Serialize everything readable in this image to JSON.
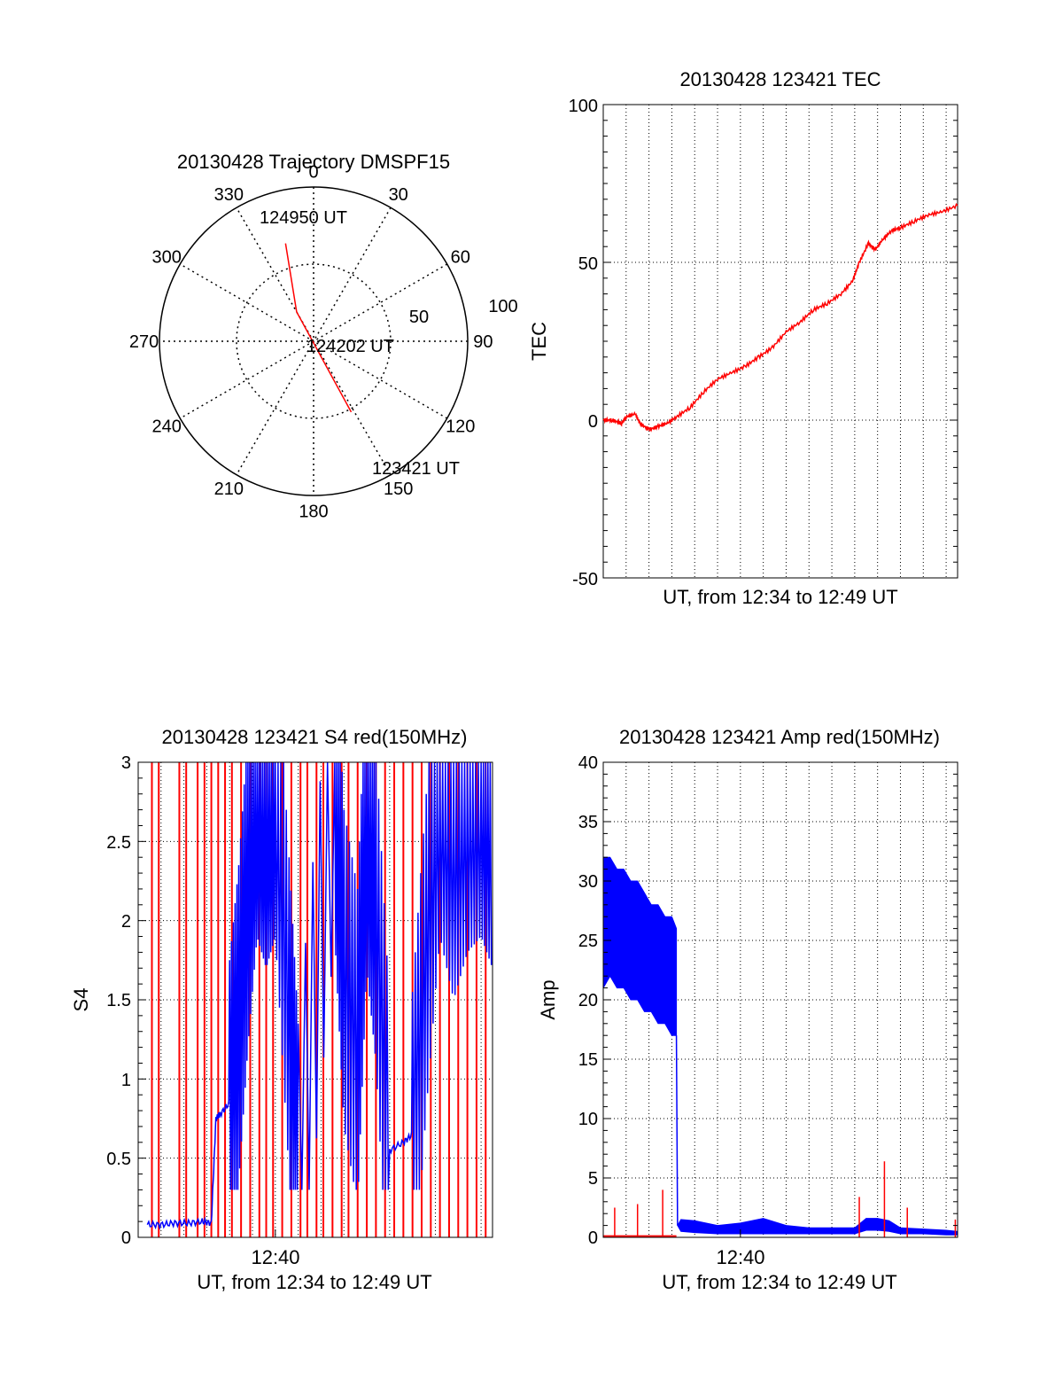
{
  "chart_data": [
    {
      "type": "scatter",
      "subtype": "polar-trajectory",
      "title": "20130428 Trajectory DMSPF15",
      "angle_labels": [
        "0",
        "30",
        "60",
        "90",
        "120",
        "150",
        "180",
        "210",
        "240",
        "270",
        "300",
        "330"
      ],
      "radial_labels": [
        "50",
        "100"
      ],
      "radial_range": [
        0,
        100
      ],
      "trajectory": [
        {
          "az": 344,
          "r": 66
        },
        {
          "az": 330,
          "r": 22
        },
        {
          "az": 152,
          "r": 52
        }
      ],
      "annotations": [
        {
          "text": "124950 UT",
          "az": 344,
          "r": 66
        },
        {
          "text": "124202 UT",
          "az": 140,
          "r": 2
        },
        {
          "text": "123421 UT",
          "az": 152,
          "r": 52
        }
      ],
      "colors": {
        "trajectory": "#ff0000",
        "grid": "#000000"
      }
    },
    {
      "type": "line",
      "title": "20130428 123421 TEC",
      "xlabel": "UT, from 12:34 to 12:49 UT",
      "ylabel": "TEC",
      "xlim_minutes": [
        0,
        15.5
      ],
      "ylim": [
        -50,
        100
      ],
      "yticks": [
        "100",
        "50",
        "0",
        "-50"
      ],
      "grid": true,
      "series": [
        {
          "color": "#ff0000",
          "x": [
            0,
            0.4,
            0.8,
            1.0,
            1.4,
            1.6,
            2.0,
            2.4,
            2.8,
            3.2,
            3.8,
            4.4,
            5.0,
            5.6,
            6.2,
            6.8,
            7.4,
            8.0,
            8.6,
            9.2,
            9.8,
            10.4,
            10.9,
            11.2,
            11.6,
            11.9,
            12.2,
            12.6,
            13.0,
            13.6,
            14.2,
            14.8,
            15.5
          ],
          "y": [
            0,
            0,
            -1,
            1,
            2,
            -1,
            -3,
            -2,
            -1,
            1,
            4,
            9,
            13,
            15,
            17,
            20,
            23,
            28,
            31,
            35,
            37,
            40,
            44,
            50,
            56,
            54,
            57,
            60,
            61,
            63,
            65,
            66,
            68
          ]
        }
      ]
    },
    {
      "type": "line",
      "title": "20130428 123421 S4 red(150MHz)",
      "xlabel": "UT, from 12:34 to 12:49 UT",
      "ylabel": "S4",
      "xlim_minutes": [
        0,
        15.5
      ],
      "xticks": [
        {
          "minute": 6,
          "label": "12:40"
        }
      ],
      "ylim": [
        0,
        3
      ],
      "yticks": [
        "0",
        "0.5",
        "1",
        "1.5",
        "2",
        "2.5",
        "3"
      ],
      "series": [
        {
          "color": "#0000ff",
          "x": [
            0.4,
            1.0,
            1.6,
            2.2,
            2.8,
            3.2,
            3.4,
            3.6,
            4.0,
            4.4,
            4.8,
            5.2,
            5.6,
            6.0,
            6.6,
            7.0,
            8.6,
            9.0,
            9.6,
            10.0,
            10.4,
            11.0,
            11.6,
            12.0,
            12.6,
            13.2,
            13.8,
            14.4,
            15.0,
            15.5
          ],
          "y": [
            0.08,
            0.08,
            0.09,
            0.09,
            0.1,
            0.09,
            0.75,
            0.78,
            0.85,
            1.45,
            2.3,
            3.0,
            2.8,
            3.0,
            1.5,
            0.45,
            3.0,
            1.8,
            1.3,
            2.8,
            2.2,
            0.55,
            0.6,
            0.65,
            1.9,
            3.0,
            2.6,
            2.9,
            3.0,
            2.8
          ]
        }
      ],
      "red_spikes_minutes": [
        0.6,
        0.9,
        1.8,
        2.1,
        2.6,
        2.9,
        3.2,
        3.5,
        3.8,
        4.1,
        4.5,
        4.9,
        5.3,
        5.6,
        5.9,
        6.3,
        6.7,
        7.1,
        7.4,
        7.8,
        8.1,
        8.5,
        8.9,
        9.2,
        9.6,
        10.0,
        10.4,
        10.8,
        11.2,
        11.6,
        12.0,
        12.4,
        12.8,
        13.2,
        13.6,
        14.0,
        14.4,
        14.8,
        15.2
      ]
    },
    {
      "type": "line",
      "title": "20130428 123421 Amp red(150MHz)",
      "xlabel": "UT, from 12:34 to 12:49 UT",
      "ylabel": "Amp",
      "xlim_minutes": [
        0,
        15.5
      ],
      "xticks": [
        {
          "minute": 6,
          "label": "12:40"
        }
      ],
      "ylim": [
        0,
        40
      ],
      "yticks": [
        "0",
        "5",
        "10",
        "15",
        "20",
        "25",
        "30",
        "35",
        "40"
      ],
      "grid": true,
      "series": [
        {
          "color": "#0000ff",
          "x": [
            0.0,
            0.3,
            0.6,
            0.9,
            1.2,
            1.5,
            1.8,
            2.1,
            2.4,
            2.7,
            3.0,
            3.2,
            3.25,
            3.4,
            4.0,
            5.0,
            6.0,
            7.0,
            8.0,
            9.0,
            10.0,
            11.0,
            11.5,
            12.0,
            12.5,
            13.0,
            14.0,
            15.0,
            15.5
          ],
          "y_low": [
            21,
            22,
            21,
            21,
            20,
            20,
            19,
            19,
            18,
            18,
            17,
            17,
            1,
            0.5,
            0.4,
            0.3,
            0.3,
            0.3,
            0.3,
            0.3,
            0.3,
            0.3,
            0.6,
            0.6,
            0.5,
            0.3,
            0.3,
            0.2,
            0.2
          ],
          "y_high": [
            32,
            32,
            31,
            31,
            30,
            30,
            29,
            28,
            28,
            27,
            27,
            26,
            1,
            1.5,
            1.4,
            1.0,
            1.2,
            1.6,
            1.0,
            0.8,
            0.8,
            0.8,
            1.6,
            1.6,
            1.4,
            0.8,
            0.7,
            0.6,
            0.5
          ]
        },
        {
          "color": "#ff0000",
          "baseline": 0.1,
          "spikes": [
            {
              "x": 0.5,
              "y": 2.5
            },
            {
              "x": 1.5,
              "y": 2.8
            },
            {
              "x": 2.6,
              "y": 4.0
            },
            {
              "x": 11.2,
              "y": 3.4
            },
            {
              "x": 12.3,
              "y": 6.4
            },
            {
              "x": 13.3,
              "y": 2.5
            },
            {
              "x": 15.4,
              "y": 1.5
            }
          ]
        }
      ]
    }
  ]
}
